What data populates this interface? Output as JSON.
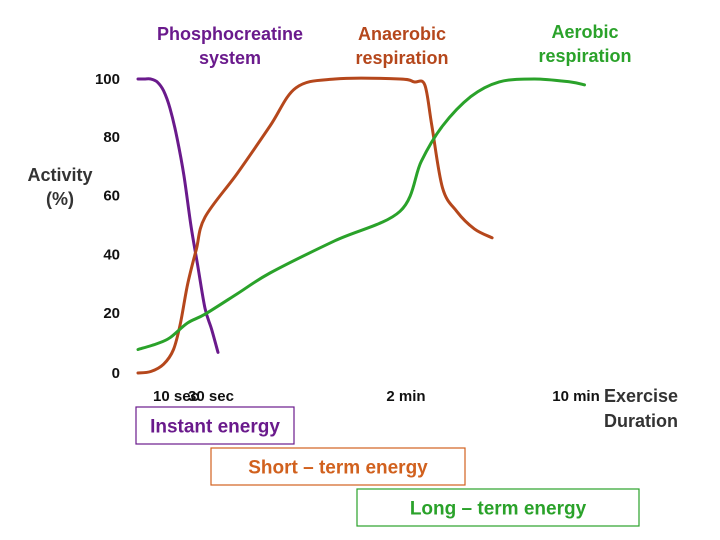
{
  "chart_data": {
    "type": "line",
    "ylabel": [
      "Activity",
      "(%)"
    ],
    "xlabel": [
      "Exercise",
      "Duration"
    ],
    "ylim": [
      0,
      100
    ],
    "y_ticks": [
      "0",
      "20",
      "40",
      "60",
      "80",
      "100"
    ],
    "x_ticks": [
      {
        "label": "10 sec",
        "x": 10
      },
      {
        "label": "30 sec",
        "x": 30
      },
      {
        "label": "2 min",
        "x": 120
      },
      {
        "label": "10 min",
        "x": 600
      }
    ],
    "grid": false,
    "series": [
      {
        "name": [
          "Phosphocreatine",
          "system"
        ],
        "color": "#6a1a8c",
        "points": [
          [
            0,
            100
          ],
          [
            2,
            100
          ],
          [
            4,
            100
          ],
          [
            6,
            99
          ],
          [
            8,
            96
          ],
          [
            10,
            90
          ],
          [
            14,
            80
          ],
          [
            18,
            67
          ],
          [
            22,
            50
          ],
          [
            26,
            36
          ],
          [
            30,
            22
          ],
          [
            33,
            15
          ],
          [
            36,
            7
          ]
        ]
      },
      {
        "name": [
          "Anaerobic",
          "respiration"
        ],
        "color": "#b5471c",
        "points": [
          [
            0,
            0
          ],
          [
            4,
            0.5
          ],
          [
            8,
            3
          ],
          [
            12,
            8
          ],
          [
            16,
            17
          ],
          [
            20,
            30
          ],
          [
            25,
            42
          ],
          [
            30,
            53
          ],
          [
            45,
            68
          ],
          [
            60,
            84
          ],
          [
            72,
            97
          ],
          [
            90,
            100
          ],
          [
            120,
            100
          ],
          [
            160,
            99
          ],
          [
            190,
            98
          ],
          [
            210,
            84
          ],
          [
            240,
            63
          ],
          [
            280,
            55
          ],
          [
            330,
            49
          ],
          [
            380,
            46
          ]
        ]
      },
      {
        "name": [
          "Aerobic",
          "respiration"
        ],
        "color": "#2aa22a",
        "points": [
          [
            0,
            8
          ],
          [
            6,
            10
          ],
          [
            10,
            12
          ],
          [
            20,
            17
          ],
          [
            30,
            20
          ],
          [
            45,
            27
          ],
          [
            60,
            34
          ],
          [
            90,
            45
          ],
          [
            120,
            55
          ],
          [
            180,
            72
          ],
          [
            240,
            84
          ],
          [
            320,
            94
          ],
          [
            400,
            99
          ],
          [
            500,
            100
          ],
          [
            600,
            99
          ],
          [
            700,
            98
          ]
        ]
      }
    ],
    "energy_bands": [
      {
        "label": "Instant energy",
        "color": "#6a1a8c",
        "from": 0,
        "to": 60
      },
      {
        "label": "Short – term energy",
        "color": "#d1611e",
        "from": 25,
        "to": 400
      },
      {
        "label": "Long – term energy",
        "color": "#2aa22a",
        "from": 130,
        "to": 900
      }
    ]
  }
}
